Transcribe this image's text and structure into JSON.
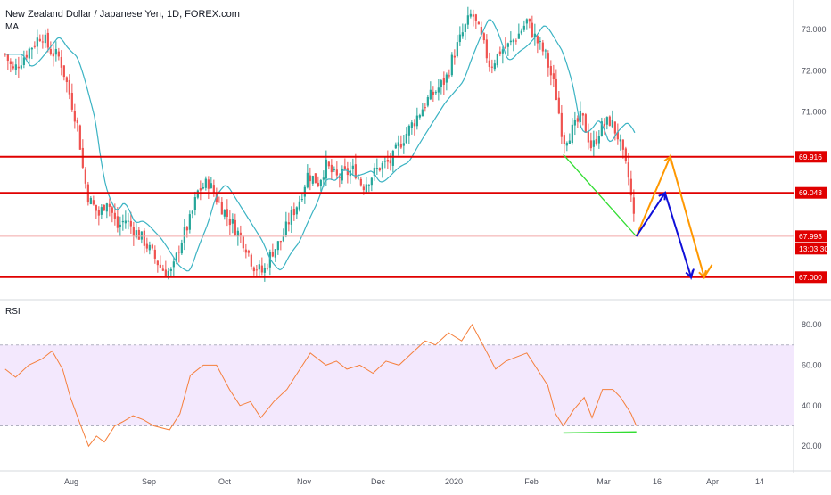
{
  "header": {
    "title": "New Zealand Dollar / Japanese Yen, 1D, FOREX.com",
    "ma_label": "MA",
    "rsi_label": "RSI"
  },
  "colors": {
    "up": "#26a69a",
    "down": "#ef5350",
    "ma": "#3bb3c3",
    "level": "#e00000",
    "current": "#ef5350",
    "rsi_line": "#f57f3b",
    "rsi_band": "#f3e8fd",
    "green": "#33dd33",
    "orange": "#ff9800",
    "blue": "#1010d8"
  },
  "chart_data": [
    {
      "type": "candlestick",
      "title": "New Zealand Dollar / Japanese Yen, 1D, FOREX.com",
      "x_ticks": [
        "Aug",
        "Sep",
        "Oct",
        "Nov",
        "Dec",
        "2020",
        "Feb",
        "Mar",
        "16",
        "Apr",
        "14"
      ],
      "y_ticks": [
        "73.000",
        "72.000",
        "71.000",
        "67.000"
      ],
      "ylim": [
        66.6,
        73.6
      ],
      "levels": [
        "69.916",
        "69.043",
        "67.000"
      ],
      "current_price": "67.993",
      "countdown": "13:03:30",
      "indicator": "MA",
      "close_path": [
        [
          "2019-07-01",
          72.4
        ],
        [
          "2019-07-04",
          72.0
        ],
        [
          "2019-07-10",
          72.5
        ],
        [
          "2019-07-15",
          72.9
        ],
        [
          "2019-07-18",
          72.5
        ],
        [
          "2019-07-22",
          72.3
        ],
        [
          "2019-07-25",
          71.6
        ],
        [
          "2019-07-29",
          70.6
        ],
        [
          "2019-07-31",
          69.5
        ],
        [
          "2019-08-02",
          68.9
        ],
        [
          "2019-08-06",
          68.5
        ],
        [
          "2019-08-09",
          68.9
        ],
        [
          "2019-08-13",
          68.2
        ],
        [
          "2019-08-16",
          68.4
        ],
        [
          "2019-08-20",
          68.1
        ],
        [
          "2019-08-23",
          67.9
        ],
        [
          "2019-08-27",
          67.5
        ],
        [
          "2019-08-30",
          67.2
        ],
        [
          "2019-09-03",
          67.1
        ],
        [
          "2019-09-06",
          67.8
        ],
        [
          "2019-09-10",
          68.4
        ],
        [
          "2019-09-13",
          69.1
        ],
        [
          "2019-09-17",
          69.3
        ],
        [
          "2019-09-20",
          68.9
        ],
        [
          "2019-09-24",
          68.5
        ],
        [
          "2019-09-27",
          68.2
        ],
        [
          "2019-10-01",
          67.8
        ],
        [
          "2019-10-04",
          67.3
        ],
        [
          "2019-10-08",
          67.1
        ],
        [
          "2019-10-11",
          67.6
        ],
        [
          "2019-10-15",
          67.9
        ],
        [
          "2019-10-18",
          68.4
        ],
        [
          "2019-10-22",
          68.9
        ],
        [
          "2019-10-25",
          69.5
        ],
        [
          "2019-10-29",
          69.3
        ],
        [
          "2019-11-01",
          69.7
        ],
        [
          "2019-11-05",
          69.4
        ],
        [
          "2019-11-08",
          69.5
        ],
        [
          "2019-11-12",
          69.6
        ],
        [
          "2019-11-15",
          69.2
        ],
        [
          "2019-11-19",
          69.5
        ],
        [
          "2019-11-22",
          69.7
        ],
        [
          "2019-11-26",
          69.8
        ],
        [
          "2019-11-29",
          70.2
        ],
        [
          "2019-12-03",
          70.6
        ],
        [
          "2019-12-06",
          70.9
        ],
        [
          "2019-12-10",
          71.3
        ],
        [
          "2019-12-13",
          71.5
        ],
        [
          "2019-12-17",
          71.8
        ],
        [
          "2019-12-20",
          72.4
        ],
        [
          "2019-12-24",
          73.0
        ],
        [
          "2019-12-27",
          73.4
        ],
        [
          "2019-12-31",
          72.7
        ],
        [
          "2020-01-03",
          72.1
        ],
        [
          "2020-01-07",
          72.5
        ],
        [
          "2020-01-10",
          72.6
        ],
        [
          "2020-01-14",
          72.9
        ],
        [
          "2020-01-17",
          73.2
        ],
        [
          "2020-01-21",
          72.7
        ],
        [
          "2020-01-24",
          72.4
        ],
        [
          "2020-01-28",
          71.5
        ],
        [
          "2020-01-31",
          70.3
        ],
        [
          "2020-02-04",
          70.6
        ],
        [
          "2020-02-07",
          70.9
        ],
        [
          "2020-02-11",
          70.1
        ],
        [
          "2020-02-14",
          70.6
        ],
        [
          "2020-02-18",
          70.8
        ],
        [
          "2020-02-21",
          70.4
        ],
        [
          "2020-02-25",
          69.4
        ],
        [
          "2020-02-28",
          68.0
        ]
      ],
      "annotations": {
        "green_line": [
          [
            "2020-01-31",
            69.97
          ],
          [
            "2020-02-28",
            67.99
          ]
        ],
        "orange_path": [
          [
            "2020-02-28",
            67.99
          ],
          [
            "2020-03-12",
            69.92
          ],
          [
            "2020-03-25",
            67.0
          ],
          [
            "2020-03-28",
            67.3
          ]
        ],
        "blue_path": [
          [
            "2020-02-28",
            67.99
          ],
          [
            "2020-03-10",
            69.04
          ],
          [
            "2020-03-20",
            67.0
          ],
          [
            "2020-03-21",
            67.2
          ]
        ]
      }
    },
    {
      "type": "line",
      "title": "RSI",
      "x_ticks": [],
      "y_ticks": [
        "80.00",
        "60.00",
        "40.00",
        "20.00"
      ],
      "band": [
        30,
        70
      ],
      "rsi_path": [
        [
          "2019-07-01",
          58
        ],
        [
          "2019-07-05",
          54
        ],
        [
          "2019-07-10",
          60
        ],
        [
          "2019-07-15",
          63
        ],
        [
          "2019-07-19",
          67
        ],
        [
          "2019-07-23",
          58
        ],
        [
          "2019-07-26",
          44
        ],
        [
          "2019-07-30",
          30
        ],
        [
          "2019-08-02",
          20
        ],
        [
          "2019-08-05",
          25
        ],
        [
          "2019-08-08",
          22
        ],
        [
          "2019-08-12",
          30
        ],
        [
          "2019-08-15",
          32
        ],
        [
          "2019-08-19",
          35
        ],
        [
          "2019-08-23",
          33
        ],
        [
          "2019-08-27",
          30
        ],
        [
          "2019-09-02",
          28
        ],
        [
          "2019-09-06",
          36
        ],
        [
          "2019-09-10",
          55
        ],
        [
          "2019-09-15",
          60
        ],
        [
          "2019-09-20",
          60
        ],
        [
          "2019-09-25",
          48
        ],
        [
          "2019-09-29",
          40
        ],
        [
          "2019-10-03",
          42
        ],
        [
          "2019-10-07",
          34
        ],
        [
          "2019-10-12",
          42
        ],
        [
          "2019-10-17",
          48
        ],
        [
          "2019-10-22",
          58
        ],
        [
          "2019-10-26",
          66
        ],
        [
          "2019-11-01",
          60
        ],
        [
          "2019-11-05",
          62
        ],
        [
          "2019-11-09",
          58
        ],
        [
          "2019-11-14",
          60
        ],
        [
          "2019-11-19",
          56
        ],
        [
          "2019-11-24",
          62
        ],
        [
          "2019-11-29",
          60
        ],
        [
          "2019-12-04",
          66
        ],
        [
          "2019-12-09",
          72
        ],
        [
          "2019-12-13",
          70
        ],
        [
          "2019-12-18",
          76
        ],
        [
          "2019-12-23",
          72
        ],
        [
          "2019-12-27",
          80
        ],
        [
          "2020-01-01",
          68
        ],
        [
          "2020-01-05",
          58
        ],
        [
          "2020-01-09",
          62
        ],
        [
          "2020-01-13",
          64
        ],
        [
          "2020-01-17",
          66
        ],
        [
          "2020-01-21",
          58
        ],
        [
          "2020-01-25",
          50
        ],
        [
          "2020-01-28",
          36
        ],
        [
          "2020-01-31",
          30
        ],
        [
          "2020-02-04",
          38
        ],
        [
          "2020-02-08",
          44
        ],
        [
          "2020-02-11",
          34
        ],
        [
          "2020-02-15",
          48
        ],
        [
          "2020-02-19",
          48
        ],
        [
          "2020-02-22",
          44
        ],
        [
          "2020-02-26",
          36
        ],
        [
          "2020-02-28",
          30
        ]
      ],
      "annotations": {
        "green_line": [
          [
            "2020-01-31",
            26.5
          ],
          [
            "2020-02-28",
            27
          ]
        ]
      }
    }
  ]
}
